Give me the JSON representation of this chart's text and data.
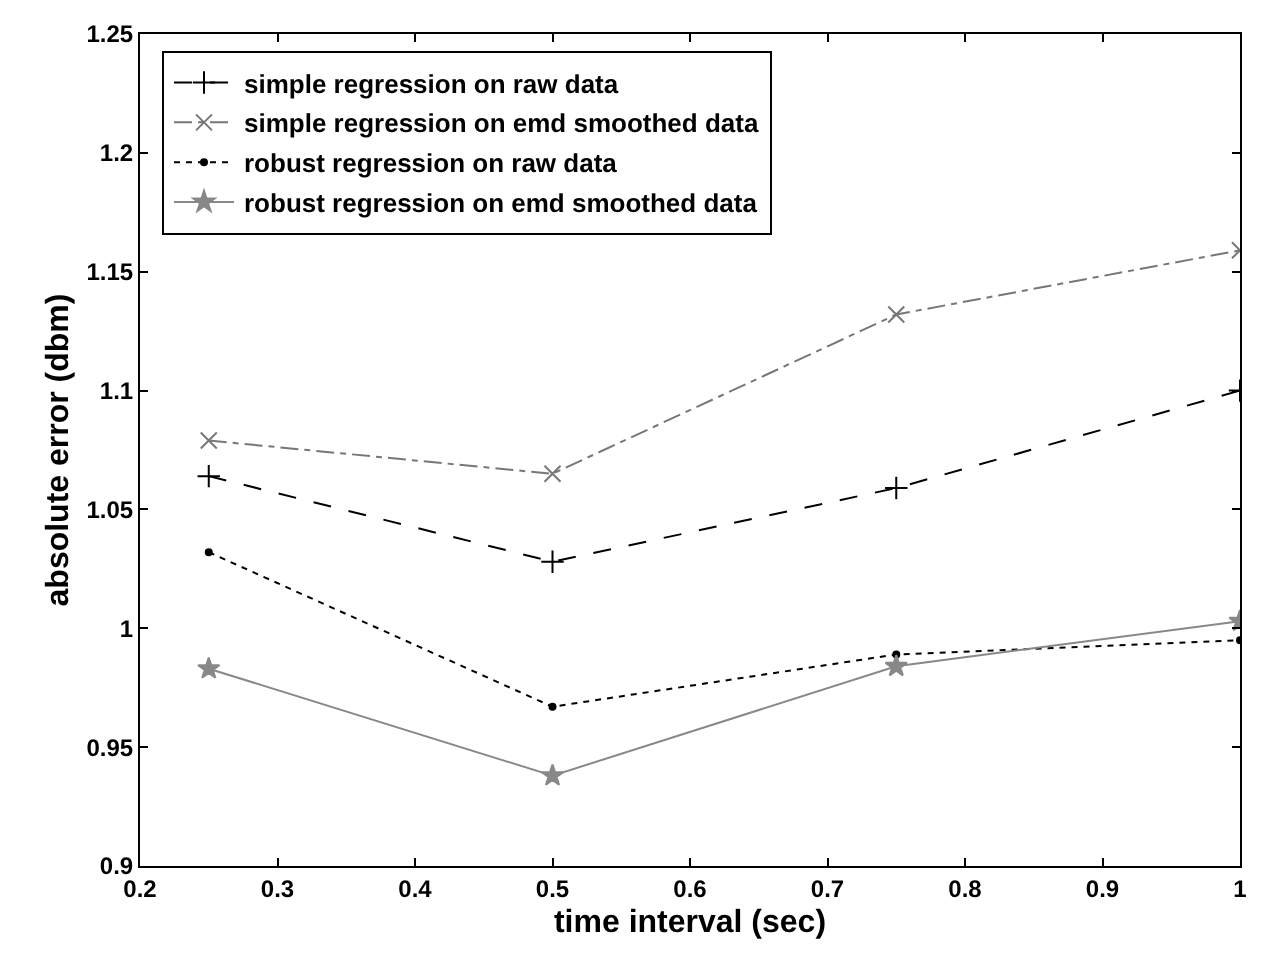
{
  "chart_data": {
    "type": "line",
    "xlabel": "time interval (sec)",
    "ylabel": "absolute error (dbm)",
    "x": [
      0.25,
      0.5,
      0.75,
      1.0
    ],
    "xlim": [
      0.2,
      1.0
    ],
    "xticks": [
      0.2,
      0.3,
      0.4,
      0.5,
      0.6,
      0.7,
      0.8,
      0.9,
      1
    ],
    "ylim": [
      0.9,
      1.25
    ],
    "yticks": [
      0.9,
      0.95,
      1,
      1.05,
      1.1,
      1.15,
      1.2,
      1.25
    ],
    "grid": false,
    "legend": "top left",
    "series": [
      {
        "name": "simple regression on raw data",
        "color": "#000000",
        "line_style": "dashed",
        "marker": "cross",
        "values": [
          1.064,
          1.028,
          1.059,
          1.1
        ]
      },
      {
        "name": "simple regression on emd smoothed data",
        "color": "#777777",
        "line_style": "dashdot",
        "marker": "x",
        "values": [
          1.079,
          1.065,
          1.132,
          1.159
        ]
      },
      {
        "name": "robust regression on raw data",
        "color": "#000000",
        "line_style": "dotted",
        "marker": "circle",
        "values": [
          1.032,
          0.967,
          0.989,
          0.995
        ]
      },
      {
        "name": "robust regression on emd smoothed data",
        "color": "#888888",
        "line_style": "solid",
        "marker": "star",
        "values": [
          0.983,
          0.938,
          0.984,
          1.003
        ]
      }
    ]
  }
}
